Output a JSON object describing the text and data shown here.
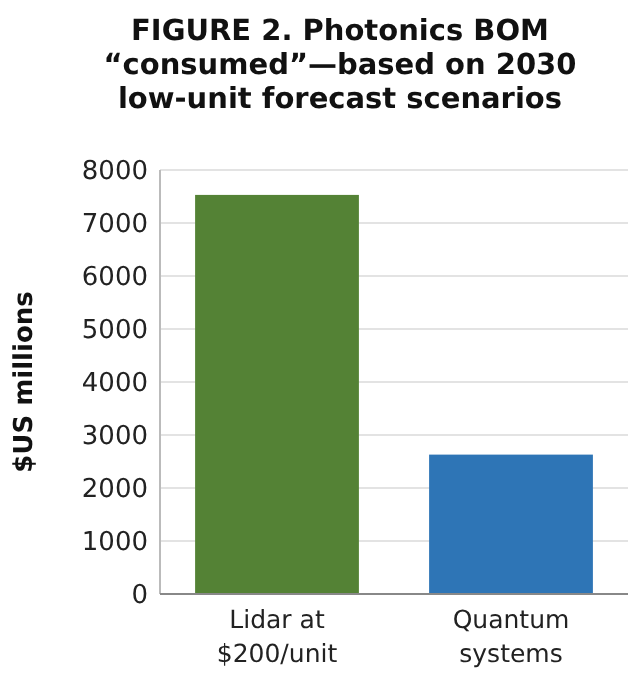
{
  "chart_data": {
    "type": "bar",
    "title": "FIGURE 2. Photonics BOM\n“consumed”—based on 2030\nlow-unit forecast scenarios",
    "ylabel": "$US millions",
    "categories": [
      "Lidar at\n$200/unit",
      "Quantum\nsystems"
    ],
    "values": [
      7530,
      2630
    ],
    "colors": [
      "#548235",
      "#2e75b6"
    ],
    "ylim": [
      0,
      8000
    ],
    "yticks": [
      0,
      1000,
      2000,
      3000,
      4000,
      5000,
      6000,
      7000,
      8000
    ],
    "grid": "y"
  }
}
